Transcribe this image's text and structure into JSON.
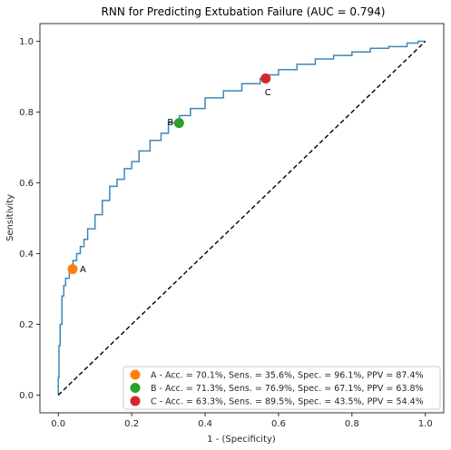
{
  "chart_data": {
    "type": "line",
    "title": "RNN for Predicting Extubation Failure (AUC = 0.794)",
    "xlabel": "1 - (Specificity)",
    "ylabel": "Sensitivity",
    "xlim": [
      -0.05,
      1.05
    ],
    "ylim": [
      -0.05,
      1.05
    ],
    "xticks": [
      "0.0",
      "0.2",
      "0.4",
      "0.6",
      "0.8",
      "1.0"
    ],
    "yticks": [
      "0.0",
      "0.2",
      "0.4",
      "0.6",
      "0.8",
      "1.0"
    ],
    "grid": false,
    "legend_position": "bottom-right",
    "colors": {
      "roc": "#3d88b8",
      "diagonal": "#000000",
      "A": "#ff7f0e",
      "B": "#2ca02c",
      "C": "#d62728"
    },
    "series": [
      {
        "x": [
          0.0,
          0.002,
          0.005,
          0.01,
          0.015,
          0.02,
          0.03,
          0.04,
          0.05,
          0.06,
          0.07,
          0.08,
          0.1,
          0.12,
          0.14,
          0.16,
          0.18,
          0.2,
          0.22,
          0.25,
          0.28,
          0.3,
          0.33,
          0.36,
          0.4,
          0.45,
          0.5,
          0.55,
          0.563,
          0.6,
          0.65,
          0.7,
          0.75,
          0.8,
          0.85,
          0.9,
          0.95,
          0.98,
          1.0
        ],
        "y": [
          0.0,
          0.05,
          0.14,
          0.2,
          0.28,
          0.31,
          0.33,
          0.355,
          0.38,
          0.4,
          0.42,
          0.44,
          0.47,
          0.51,
          0.55,
          0.59,
          0.61,
          0.64,
          0.66,
          0.69,
          0.72,
          0.74,
          0.77,
          0.79,
          0.81,
          0.84,
          0.86,
          0.88,
          0.895,
          0.905,
          0.92,
          0.935,
          0.95,
          0.96,
          0.97,
          0.98,
          0.985,
          0.995,
          1.0
        ]
      },
      {
        "x": [
          0.0,
          1.0
        ],
        "y": [
          0.0,
          1.0
        ]
      }
    ],
    "points": [
      {
        "label": "A",
        "x": 0.039,
        "y": 0.356,
        "color": "#ff7f0e",
        "legend": "A - Acc. = 70.1%, Sens. = 35.6%, Spec. = 96.1%, PPV = 87.4%"
      },
      {
        "label": "B",
        "x": 0.329,
        "y": 0.769,
        "color": "#2ca02c",
        "legend": "B - Acc. = 71.3%, Sens. = 76.9%, Spec. = 67.1%, PPV = 63.8%"
      },
      {
        "label": "C",
        "x": 0.565,
        "y": 0.895,
        "color": "#d62728",
        "legend": "C - Acc. = 63.3%, Sens. = 89.5%, Spec. = 43.5%, PPV = 54.4%"
      }
    ]
  }
}
